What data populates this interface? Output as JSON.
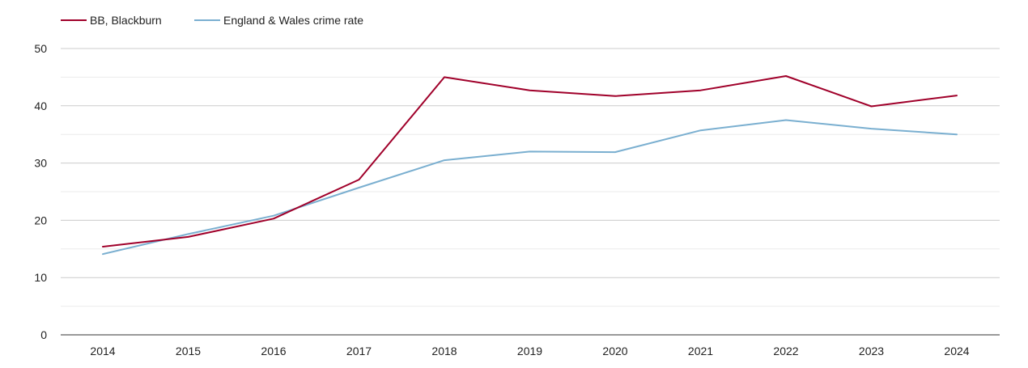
{
  "chart_data": {
    "type": "line",
    "title": "",
    "xlabel": "",
    "ylabel": "",
    "x": [
      "2014",
      "2015",
      "2016",
      "2017",
      "2018",
      "2019",
      "2020",
      "2021",
      "2022",
      "2023",
      "2024"
    ],
    "ylim": [
      0,
      50
    ],
    "yticks": [
      "0",
      "10",
      "20",
      "30",
      "40",
      "50"
    ],
    "grid": true,
    "legend_position": "top-left",
    "series": [
      {
        "name": "BB, Blackburn",
        "color": "#a0002a",
        "values": [
          15.4,
          17.1,
          20.3,
          27.1,
          45.0,
          42.7,
          41.7,
          42.7,
          45.2,
          39.9,
          41.8
        ]
      },
      {
        "name": "England & Wales crime rate",
        "color": "#7aafd0",
        "values": [
          14.1,
          17.6,
          20.8,
          25.7,
          30.5,
          32.0,
          31.9,
          35.7,
          37.5,
          36.0,
          35.0
        ]
      }
    ]
  }
}
